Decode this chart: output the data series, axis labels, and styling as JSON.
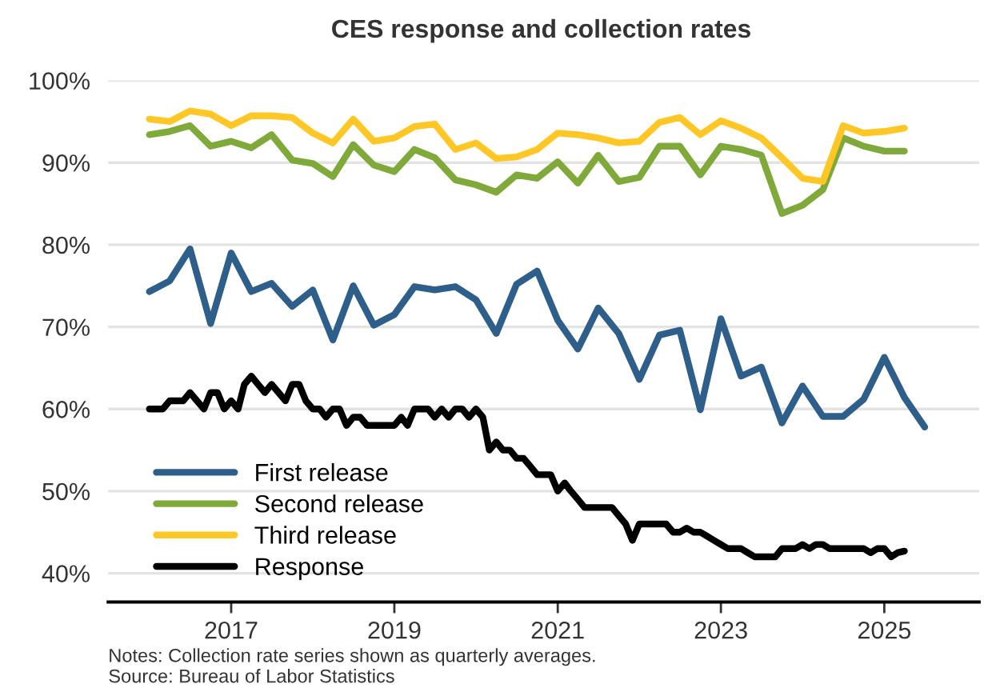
{
  "chart_data": {
    "type": "line",
    "title": "CES response and collection rates",
    "xlim": [
      "2015-07",
      "2026-03"
    ],
    "xticks": [
      "2017",
      "2019",
      "2021",
      "2023",
      "2025"
    ],
    "ylim": [
      36.5,
      100
    ],
    "yticks": [
      {
        "value": 40,
        "label": "40%"
      },
      {
        "value": 50,
        "label": "50%"
      },
      {
        "value": 60,
        "label": "60%"
      },
      {
        "value": 70,
        "label": "70%"
      },
      {
        "value": 80,
        "label": "80%"
      },
      {
        "value": 90,
        "label": "90%"
      },
      {
        "value": 100,
        "label": "100%"
      }
    ],
    "grid": "y",
    "legend": "bottom left",
    "line_style": "solid",
    "marker": "none",
    "series": [
      {
        "name": "First release",
        "color": "#2e5f8a",
        "x": [
          "2016-01",
          "2016-04",
          "2016-07",
          "2016-10",
          "2017-01",
          "2017-04",
          "2017-07",
          "2017-10",
          "2018-01",
          "2018-04",
          "2018-07",
          "2018-10",
          "2019-01",
          "2019-04",
          "2019-07",
          "2019-10",
          "2020-01",
          "2020-04",
          "2020-07",
          "2020-10",
          "2021-01",
          "2021-04",
          "2021-07",
          "2021-10",
          "2022-01",
          "2022-04",
          "2022-07",
          "2022-10",
          "2023-01",
          "2023-04",
          "2023-07",
          "2023-10",
          "2024-01",
          "2024-04",
          "2024-07",
          "2024-10",
          "2025-01",
          "2025-04",
          "2025-07"
        ],
        "values": [
          74.3,
          75.6,
          79.5,
          70.4,
          79,
          74.3,
          75.3,
          72.5,
          74.5,
          68.4,
          75,
          70.2,
          71.5,
          74.9,
          74.5,
          74.9,
          73.3,
          69.2,
          75.2,
          76.8,
          70.8,
          67.3,
          72.3,
          69.2,
          63.6,
          69,
          69.6,
          59.9,
          71,
          64,
          65.1,
          58.3,
          62.8,
          59.1,
          59.1,
          61.2,
          66.3,
          61.4,
          57.8
        ]
      },
      {
        "name": "Second release",
        "color": "#7faa3a",
        "x": [
          "2016-01",
          "2016-04",
          "2016-07",
          "2016-10",
          "2017-01",
          "2017-04",
          "2017-07",
          "2017-10",
          "2018-01",
          "2018-04",
          "2018-07",
          "2018-10",
          "2019-01",
          "2019-04",
          "2019-07",
          "2019-10",
          "2020-01",
          "2020-04",
          "2020-07",
          "2020-10",
          "2021-01",
          "2021-04",
          "2021-07",
          "2021-10",
          "2022-01",
          "2022-04",
          "2022-07",
          "2022-10",
          "2023-01",
          "2023-04",
          "2023-07",
          "2023-10",
          "2024-01",
          "2024-04",
          "2024-07",
          "2024-10",
          "2025-01",
          "2025-04"
        ],
        "values": [
          93.4,
          93.8,
          94.5,
          92.0,
          92.6,
          91.8,
          93.4,
          90.3,
          89.9,
          88.3,
          92.2,
          89.7,
          88.9,
          91.6,
          90.6,
          87.9,
          87.3,
          86.4,
          88.5,
          88.1,
          90.1,
          87.5,
          90.9,
          87.7,
          88.2,
          92.0,
          92.0,
          88.5,
          92.0,
          91.6,
          90.9,
          83.8,
          84.8,
          86.7,
          93.0,
          92.0,
          91.4,
          91.4
        ]
      },
      {
        "name": "Third release",
        "color": "#ffc726",
        "x": [
          "2016-01",
          "2016-04",
          "2016-07",
          "2016-10",
          "2017-01",
          "2017-04",
          "2017-07",
          "2017-10",
          "2018-01",
          "2018-04",
          "2018-07",
          "2018-10",
          "2019-01",
          "2019-04",
          "2019-07",
          "2019-10",
          "2020-01",
          "2020-04",
          "2020-07",
          "2020-10",
          "2021-01",
          "2021-04",
          "2021-07",
          "2021-10",
          "2022-01",
          "2022-04",
          "2022-07",
          "2022-10",
          "2023-01",
          "2023-04",
          "2023-07",
          "2023-10",
          "2024-01",
          "2024-04",
          "2024-07",
          "2024-10",
          "2025-01",
          "2025-04"
        ],
        "values": [
          95.3,
          95.0,
          96.3,
          95.9,
          94.5,
          95.7,
          95.7,
          95.5,
          93.6,
          92.4,
          95.3,
          92.6,
          93.0,
          94.4,
          94.7,
          91.6,
          92.4,
          90.5,
          90.7,
          91.6,
          93.6,
          93.4,
          93.0,
          92.4,
          92.6,
          94.9,
          95.5,
          93.4,
          95.1,
          94.2,
          93.0,
          90.6,
          88.1,
          87.7,
          94.5,
          93.6,
          93.8,
          94.2
        ]
      },
      {
        "name": "Response",
        "color": "#000000",
        "x": [
          "2016-01",
          "2016-02",
          "2016-03",
          "2016-04",
          "2016-05",
          "2016-06",
          "2016-07",
          "2016-08",
          "2016-09",
          "2016-10",
          "2016-11",
          "2016-12",
          "2017-01",
          "2017-02",
          "2017-03",
          "2017-04",
          "2017-05",
          "2017-06",
          "2017-07",
          "2017-08",
          "2017-09",
          "2017-10",
          "2017-11",
          "2017-12",
          "2018-01",
          "2018-02",
          "2018-03",
          "2018-04",
          "2018-05",
          "2018-06",
          "2018-07",
          "2018-08",
          "2018-09",
          "2018-10",
          "2018-11",
          "2018-12",
          "2019-01",
          "2019-02",
          "2019-03",
          "2019-04",
          "2019-05",
          "2019-06",
          "2019-07",
          "2019-08",
          "2019-09",
          "2019-10",
          "2019-11",
          "2019-12",
          "2020-01",
          "2020-02",
          "2020-03",
          "2020-04",
          "2020-05",
          "2020-06",
          "2020-07",
          "2020-08",
          "2020-09",
          "2020-10",
          "2020-11",
          "2020-12",
          "2021-01",
          "2021-02",
          "2021-03",
          "2021-04",
          "2021-05",
          "2021-06",
          "2021-07",
          "2021-08",
          "2021-09",
          "2021-10",
          "2021-11",
          "2021-12",
          "2022-01",
          "2022-02",
          "2022-03",
          "2022-04",
          "2022-05",
          "2022-06",
          "2022-07",
          "2022-08",
          "2022-09",
          "2022-10",
          "2022-11",
          "2022-12",
          "2023-01",
          "2023-02",
          "2023-03",
          "2023-04",
          "2023-05",
          "2023-06",
          "2023-07",
          "2023-08",
          "2023-09",
          "2023-10",
          "2023-11",
          "2023-12",
          "2024-01",
          "2024-02",
          "2024-03",
          "2024-04",
          "2024-05",
          "2024-06",
          "2024-07",
          "2024-08",
          "2024-09",
          "2024-10",
          "2024-11",
          "2024-12",
          "2025-01",
          "2025-02",
          "2025-03",
          "2025-04"
        ],
        "values": [
          60,
          60,
          60,
          61,
          61,
          61,
          62,
          61,
          60,
          62,
          62,
          60,
          61,
          60,
          63,
          64,
          63,
          62,
          63,
          62,
          61,
          63,
          63,
          61,
          60,
          60,
          59,
          60,
          60,
          58,
          59,
          59,
          58,
          58,
          58,
          58,
          58,
          59,
          58,
          60,
          60,
          60,
          59,
          60,
          59,
          60,
          60,
          59,
          60,
          59,
          55,
          56,
          55,
          55,
          54,
          54,
          53,
          52,
          52,
          52,
          50,
          51,
          50,
          49,
          48,
          48,
          48,
          48,
          48,
          47,
          46,
          44,
          46,
          46,
          46,
          46,
          46,
          45,
          45,
          45.5,
          45,
          45,
          44.5,
          44,
          43.5,
          43,
          43,
          43,
          42.5,
          42,
          42,
          42,
          42,
          43,
          43,
          43,
          43.5,
          43,
          43.5,
          43.5,
          43,
          43,
          43,
          43,
          43,
          43,
          42.5,
          43,
          43,
          42,
          42.5,
          42.7
        ]
      }
    ],
    "annotations": [
      "Notes: Collection rate series shown as quarterly averages.",
      "Source: Bureau of Labor Statistics"
    ]
  }
}
